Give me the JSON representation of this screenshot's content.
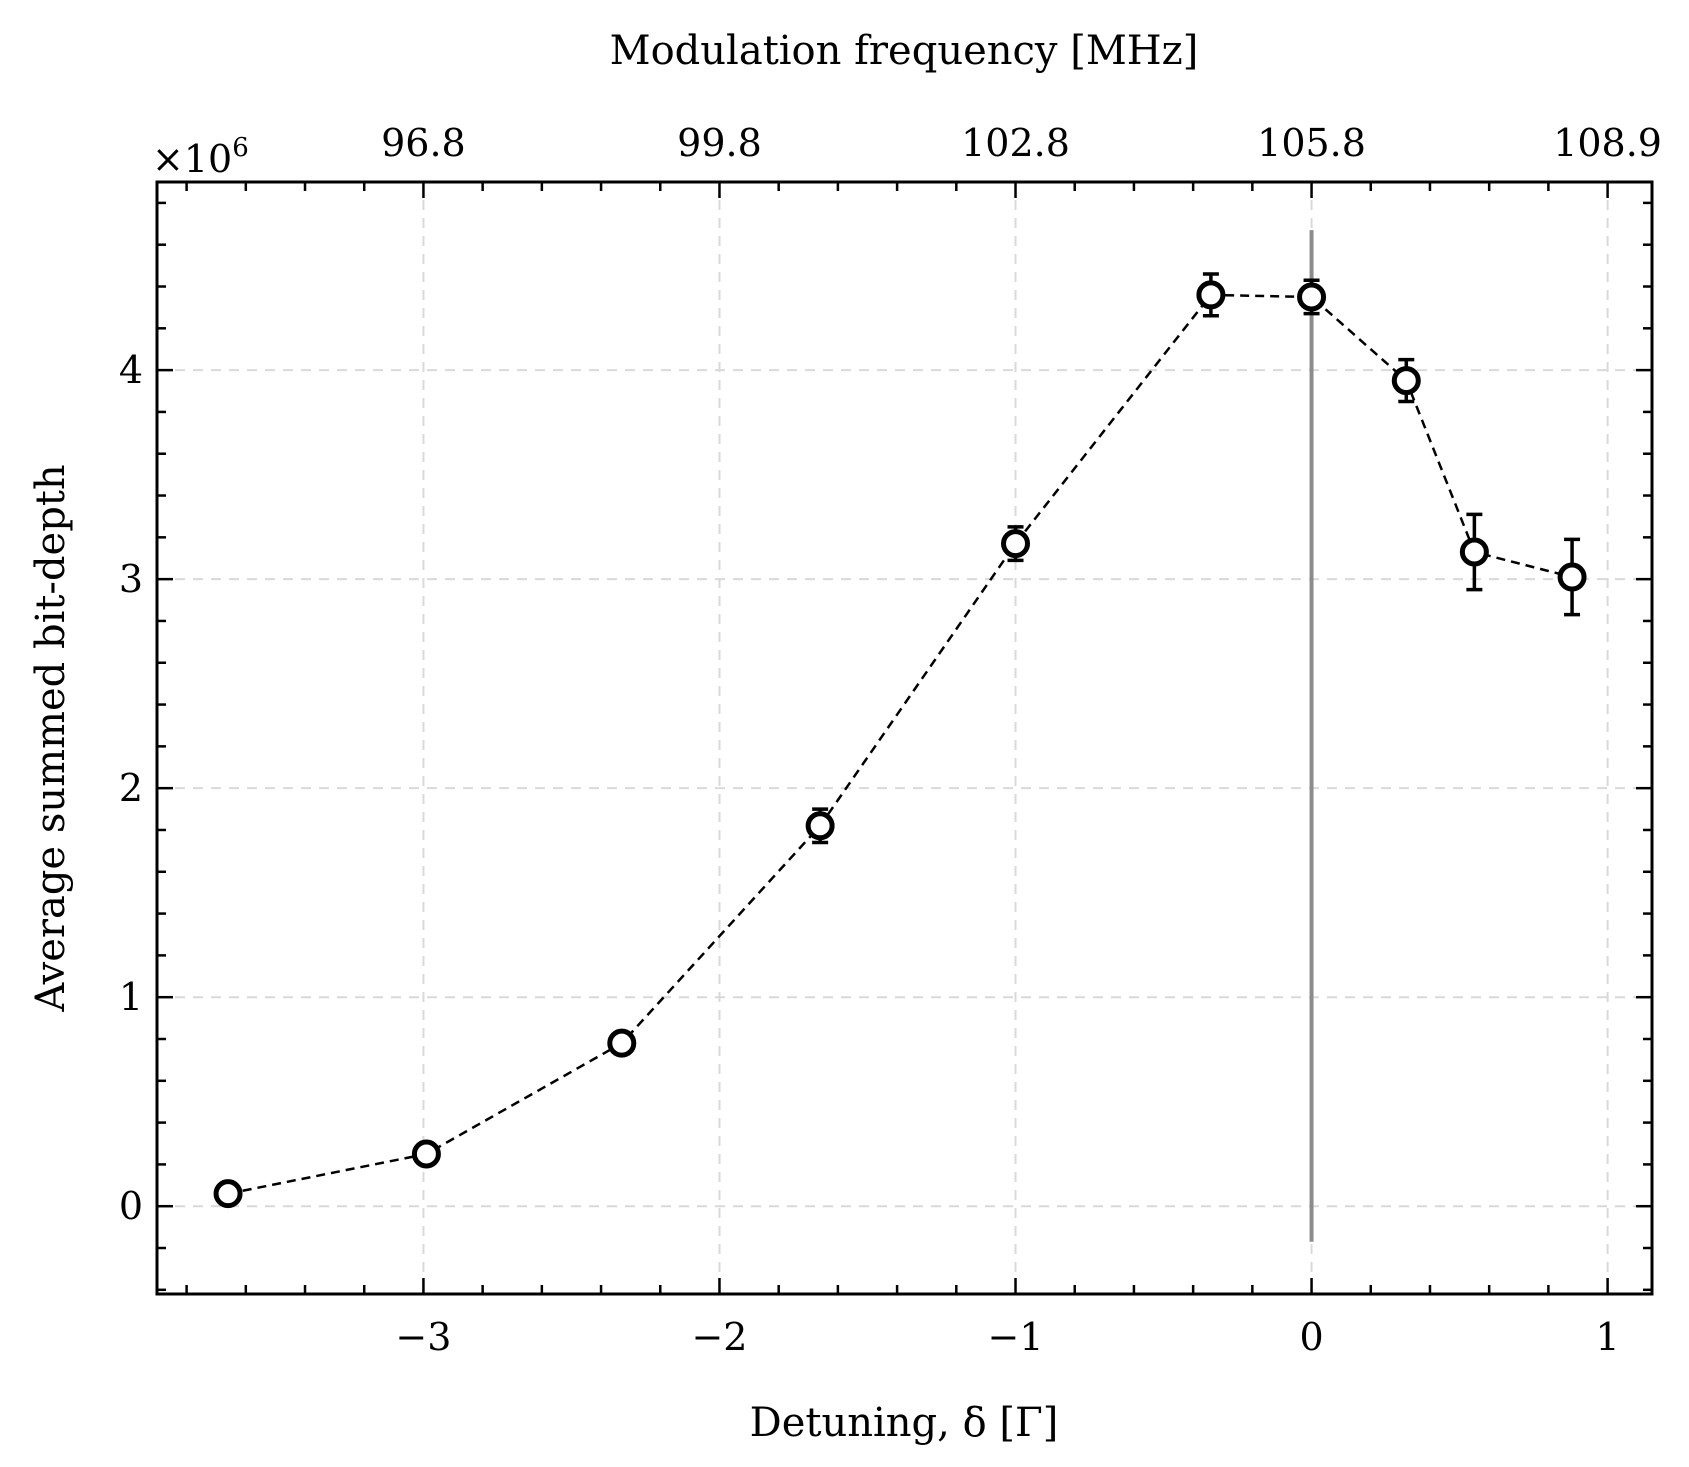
{
  "chart_data": {
    "type": "scatter",
    "xlabel": "Detuning, δ [Γ]",
    "ylabel": "Average summed bit-depth",
    "top_xlabel": "Modulation frequency [MHz]",
    "y_multiplier": "×10",
    "y_multiplier_exponent": "6",
    "xlim": [
      -3.9,
      1.15
    ],
    "ylim": [
      -0.42,
      4.9
    ],
    "x_ticks": [
      -3,
      -2,
      -1,
      0,
      1
    ],
    "x_tick_labels": [
      "−3",
      "−2",
      "−1",
      "0",
      "1"
    ],
    "y_ticks": [
      0,
      1,
      2,
      3,
      4
    ],
    "y_tick_labels": [
      "0",
      "1",
      "2",
      "3",
      "4"
    ],
    "top_ticks": [
      -3,
      -2,
      -1,
      0,
      1
    ],
    "top_tick_labels": [
      "96.8",
      "99.8",
      "102.8",
      "105.8",
      "108.9"
    ],
    "grid": true,
    "series": [
      {
        "marker": "open-circle",
        "line": "dashed",
        "color": "#000000",
        "x": [
          -3.66,
          -2.99,
          -2.33,
          -1.66,
          -1.0,
          -0.34,
          0.0,
          0.32,
          0.55,
          0.88
        ],
        "y": [
          0.06,
          0.25,
          0.78,
          1.82,
          3.17,
          4.36,
          4.35,
          3.95,
          3.13,
          3.01
        ],
        "yerr": [
          0.02,
          0.03,
          0.05,
          0.08,
          0.08,
          0.1,
          0.08,
          0.1,
          0.18,
          0.18
        ]
      }
    ],
    "vline": {
      "x": 0.0,
      "y_from": -0.17,
      "y_to": 4.67,
      "color": "#8c8c8c"
    }
  }
}
